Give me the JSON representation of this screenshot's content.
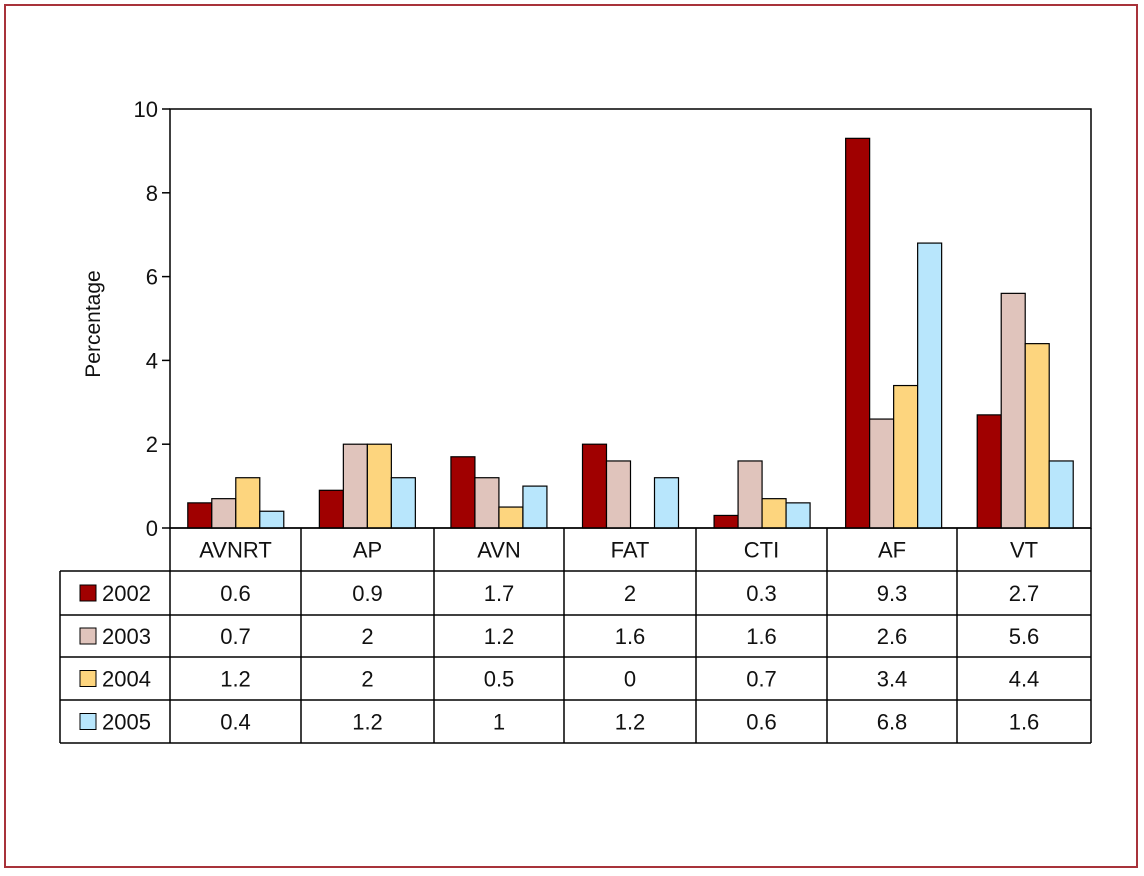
{
  "chart_data": {
    "type": "bar",
    "title": "",
    "xlabel": "",
    "ylabel": "Percentage",
    "ylim": [
      0,
      10
    ],
    "yticks": [
      0,
      2,
      4,
      6,
      8,
      10
    ],
    "grid": false,
    "legend": "data-table-left",
    "categories": [
      "AVNRT",
      "AP",
      "AVN",
      "FAT",
      "CTI",
      "AF",
      "VT"
    ],
    "series": [
      {
        "name": "2002",
        "color": "#a00000",
        "values": [
          0.6,
          0.9,
          1.7,
          2,
          0.3,
          9.3,
          2.7
        ],
        "labels": [
          "0.6",
          "0.9",
          "1.7",
          "2",
          "0.3",
          "9.3",
          "2.7"
        ]
      },
      {
        "name": "2003",
        "color": "#e0c4bc",
        "values": [
          0.7,
          2,
          1.2,
          1.6,
          1.6,
          2.6,
          5.6
        ],
        "labels": [
          "0.7",
          "2",
          "1.2",
          "1.6",
          "1.6",
          "2.6",
          "5.6"
        ]
      },
      {
        "name": "2004",
        "color": "#fdd57e",
        "values": [
          1.2,
          2,
          0.5,
          0,
          0.7,
          3.4,
          4.4
        ],
        "labels": [
          "1.2",
          "2",
          "0.5",
          "0",
          "0.7",
          "3.4",
          "4.4"
        ]
      },
      {
        "name": "2005",
        "color": "#b8e6fc",
        "values": [
          0.4,
          1.2,
          1,
          1.2,
          0.6,
          6.8,
          1.6
        ],
        "labels": [
          "0.4",
          "1.2",
          "1",
          "1.2",
          "0.6",
          "6.8",
          "1.6"
        ]
      }
    ]
  }
}
